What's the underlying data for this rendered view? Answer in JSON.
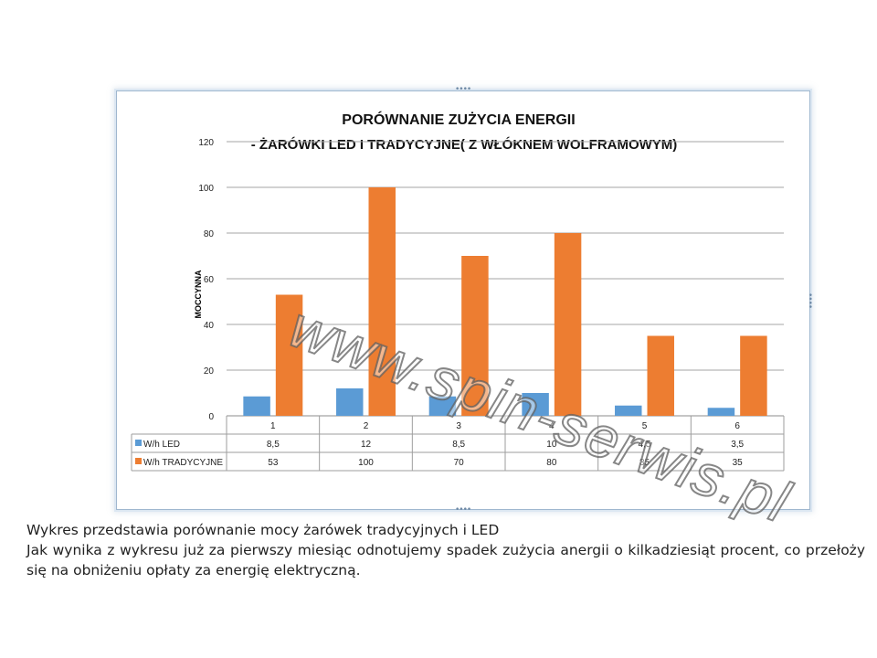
{
  "chart_data": {
    "type": "bar",
    "title_lines": [
      "PORÓWNANIE ZUŻYCIA ENERGII",
      "- ŻARÓWKI LED I TRADYCYJNE( Z WŁÓKNEM WOLFRAMOWYM)"
    ],
    "ylabel": "MOCCYNNA",
    "xlabel": "",
    "categories": [
      "1",
      "2",
      "3",
      "4",
      "5",
      "6"
    ],
    "ylim": [
      0,
      120
    ],
    "yticks": [
      0,
      20,
      40,
      60,
      80,
      100,
      120
    ],
    "grid": true,
    "legend_placement": "data table",
    "series": [
      {
        "name": "W/h LED",
        "color": "#5B9BD5",
        "values": [
          8.5,
          12,
          8.5,
          10,
          4.5,
          3.5
        ],
        "display_values": [
          "8,5",
          "12",
          "8,5",
          "10",
          "4,5",
          "3,5"
        ]
      },
      {
        "name": "W/h TRADYCYJNE",
        "color": "#ED7D31",
        "values": [
          53,
          100,
          70,
          80,
          35,
          35
        ],
        "display_values": [
          "53",
          "100",
          "70",
          "80",
          "35",
          "35"
        ]
      }
    ]
  },
  "watermark": "www.spin-serwis.pl",
  "caption": {
    "line1": "Wykres przedstawia porównanie mocy żarówek tradycyjnych i LED",
    "line2": "Jak wynika z wykresu już za pierwszy miesiąc odnotujemy spadek zużycia anergii o kilkadziesiąt procent, co przełoży się na obniżeniu opłaty za energię elektryczną."
  }
}
